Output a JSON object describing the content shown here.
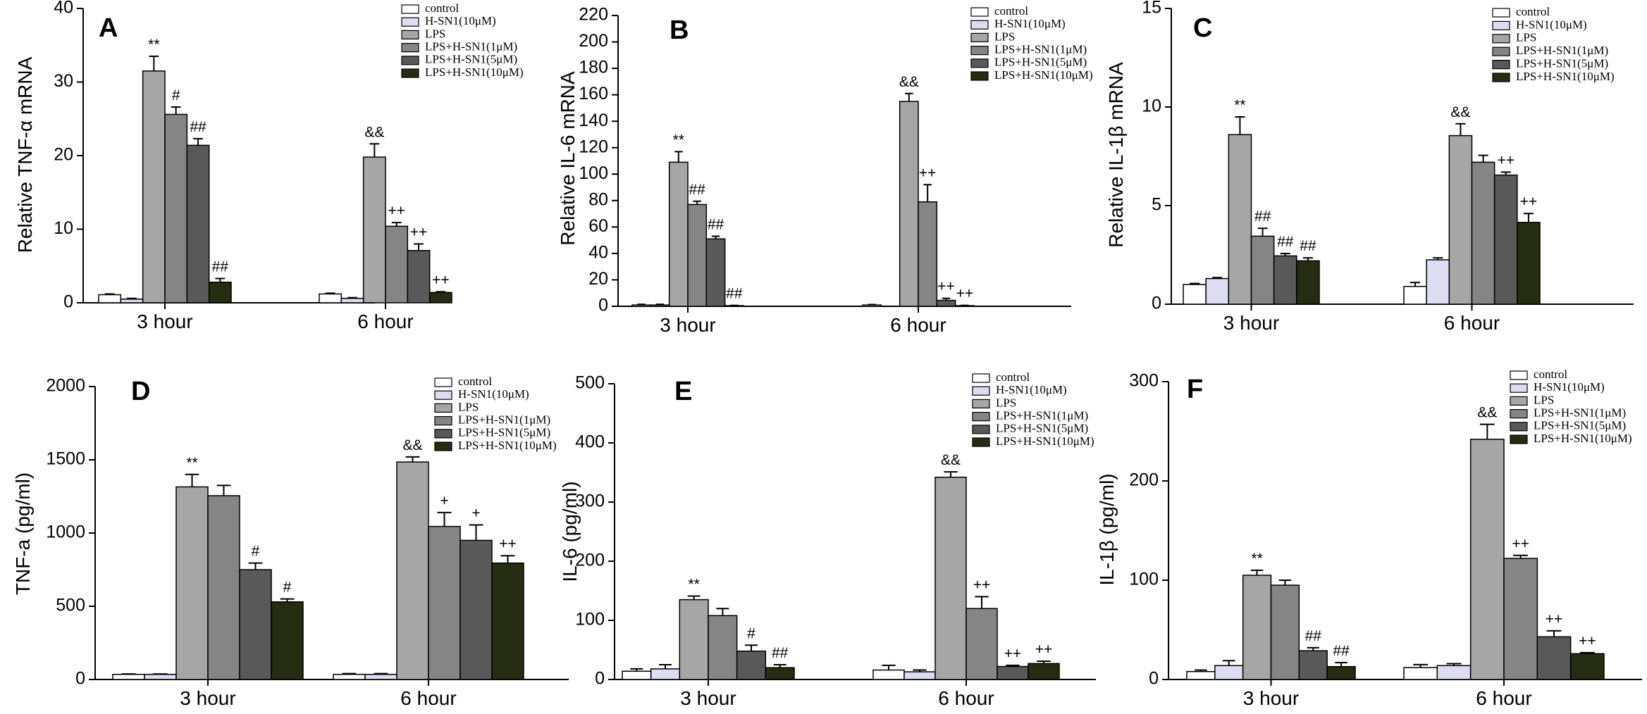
{
  "legend": {
    "entries": [
      "control",
      "H-SN1(10μM)",
      "LPS",
      "LPS+H-SN1(1μM)",
      "LPS+H-SN1(5μM)",
      "LPS+H-SN1(10μM)"
    ],
    "colors": [
      "#ffffff",
      "#dcdcf3",
      "#a6a6a6",
      "#858585",
      "#595959",
      "#262c12"
    ],
    "placement": "top-right"
  },
  "chart_data": [
    {
      "panel": "A",
      "type": "bar",
      "ylabel": "Relative TNF-α mRNA",
      "categories": [
        "3 hour",
        "6 hour"
      ],
      "ylim": [
        0,
        40
      ],
      "yticks": [
        0,
        10,
        20,
        30,
        40
      ],
      "ytick_labels": [
        "0",
        "10",
        "20",
        "30",
        "40"
      ],
      "series": [
        {
          "name": "control",
          "values": [
            1.1,
            1.2
          ],
          "errors": [
            0.1,
            0.1
          ],
          "annotations": [
            "",
            ""
          ]
        },
        {
          "name": "H-SN1(10μM)",
          "values": [
            0.5,
            0.6
          ],
          "errors": [
            0.1,
            0.1
          ],
          "annotations": [
            "",
            ""
          ]
        },
        {
          "name": "LPS",
          "values": [
            31.5,
            19.8
          ],
          "errors": [
            2.0,
            1.8
          ],
          "annotations": [
            "**",
            "&&"
          ]
        },
        {
          "name": "LPS+H-SN1(1μM)",
          "values": [
            25.6,
            10.4
          ],
          "errors": [
            1.0,
            0.5
          ],
          "annotations": [
            "#",
            "++"
          ]
        },
        {
          "name": "LPS+H-SN1(5μM)",
          "values": [
            21.4,
            7.1
          ],
          "errors": [
            0.9,
            0.9
          ],
          "annotations": [
            "##",
            "++"
          ]
        },
        {
          "name": "LPS+H-SN1(10μM)",
          "values": [
            2.8,
            1.4
          ],
          "errors": [
            0.5,
            0.1
          ],
          "annotations": [
            "##",
            "++"
          ]
        }
      ]
    },
    {
      "panel": "B",
      "type": "bar",
      "ylabel": "Relative IL-6 mRNA",
      "categories": [
        "3 hour",
        "6 hour"
      ],
      "ylim": [
        0,
        220
      ],
      "yticks": [
        0,
        20,
        40,
        60,
        80,
        100,
        120,
        140,
        160,
        180,
        200,
        220
      ],
      "ytick_labels": [
        "0",
        "20",
        "40",
        "60",
        "80",
        "100",
        "120",
        "140",
        "160",
        "180",
        "200",
        "220"
      ],
      "series": [
        {
          "name": "control",
          "values": [
            1.0,
            1.0
          ],
          "errors": [
            0.5,
            0.3
          ],
          "annotations": [
            "",
            ""
          ]
        },
        {
          "name": "H-SN1(10μM)",
          "values": [
            1.0,
            0.0
          ],
          "errors": [
            0.5,
            0.0
          ],
          "annotations": [
            "",
            ""
          ]
        },
        {
          "name": "LPS",
          "values": [
            109,
            155
          ],
          "errors": [
            8,
            6
          ],
          "annotations": [
            "**",
            "&&"
          ]
        },
        {
          "name": "LPS+H-SN1(1μM)",
          "values": [
            77,
            79
          ],
          "errors": [
            2.5,
            13
          ],
          "annotations": [
            "##",
            "++"
          ]
        },
        {
          "name": "LPS+H-SN1(5μM)",
          "values": [
            51,
            4.5
          ],
          "errors": [
            2,
            1.5
          ],
          "annotations": [
            "##",
            "++"
          ]
        },
        {
          "name": "LPS+H-SN1(10μM)",
          "values": [
            0.5,
            0.5
          ],
          "errors": [
            0.2,
            0.2
          ],
          "annotations": [
            "##",
            "++"
          ]
        }
      ]
    },
    {
      "panel": "C",
      "type": "bar",
      "ylabel": "Relative IL-1β mRNA",
      "categories": [
        "3 hour",
        "6 hour"
      ],
      "ylim": [
        0,
        15
      ],
      "yticks": [
        0,
        5,
        10,
        15
      ],
      "ytick_labels": [
        "0",
        "5",
        "10",
        "15"
      ],
      "series": [
        {
          "name": "control",
          "values": [
            1.0,
            0.9
          ],
          "errors": [
            0.05,
            0.2
          ],
          "annotations": [
            "",
            ""
          ]
        },
        {
          "name": "H-SN1(10μM)",
          "values": [
            1.3,
            2.25
          ],
          "errors": [
            0.05,
            0.1
          ],
          "annotations": [
            "",
            ""
          ]
        },
        {
          "name": "LPS",
          "values": [
            8.6,
            8.55
          ],
          "errors": [
            0.9,
            0.6
          ],
          "annotations": [
            "**",
            "&&"
          ]
        },
        {
          "name": "LPS+H-SN1(1μM)",
          "values": [
            3.45,
            7.2
          ],
          "errors": [
            0.4,
            0.35
          ],
          "annotations": [
            "##",
            ""
          ]
        },
        {
          "name": "LPS+H-SN1(5μM)",
          "values": [
            2.45,
            6.55
          ],
          "errors": [
            0.12,
            0.15
          ],
          "annotations": [
            "##",
            "++"
          ]
        },
        {
          "name": "LPS+H-SN1(10μM)",
          "values": [
            2.2,
            4.15
          ],
          "errors": [
            0.15,
            0.45
          ],
          "annotations": [
            "##",
            "++"
          ]
        }
      ]
    },
    {
      "panel": "D",
      "type": "bar",
      "ylabel": "TNF-a  (pg/ml)",
      "categories": [
        "3 hour",
        "6 hour"
      ],
      "ylim": [
        0,
        2000
      ],
      "yticks": [
        0,
        500,
        1000,
        1500,
        2000
      ],
      "ytick_labels": [
        "0",
        "500",
        "1000",
        "1500",
        "2000"
      ],
      "series": [
        {
          "name": "control",
          "values": [
            35,
            35
          ],
          "errors": [
            3,
            5
          ],
          "annotations": [
            "",
            ""
          ]
        },
        {
          "name": "H-SN1(10μM)",
          "values": [
            35,
            35
          ],
          "errors": [
            3,
            5
          ],
          "annotations": [
            "",
            ""
          ]
        },
        {
          "name": "LPS",
          "values": [
            1315,
            1485
          ],
          "errors": [
            85,
            35
          ],
          "annotations": [
            "**",
            "&&"
          ]
        },
        {
          "name": "LPS+H-SN1(1μM)",
          "values": [
            1255,
            1045
          ],
          "errors": [
            70,
            95
          ],
          "annotations": [
            "",
            "+"
          ]
        },
        {
          "name": "LPS+H-SN1(5μM)",
          "values": [
            750,
            950
          ],
          "errors": [
            45,
            105
          ],
          "annotations": [
            "#",
            "+"
          ]
        },
        {
          "name": "LPS+H-SN1(10μM)",
          "values": [
            530,
            795
          ],
          "errors": [
            20,
            50
          ],
          "annotations": [
            "#",
            "++"
          ]
        }
      ]
    },
    {
      "panel": "E",
      "type": "bar",
      "ylabel": "IL-6  (pg/ml)",
      "categories": [
        "3 hour",
        "6 hour"
      ],
      "ylim": [
        0,
        500
      ],
      "yticks": [
        0,
        100,
        200,
        300,
        400,
        500
      ],
      "ytick_labels": [
        "0",
        "100",
        "200",
        "300",
        "400",
        "500"
      ],
      "series": [
        {
          "name": "control",
          "values": [
            14,
            16
          ],
          "errors": [
            4,
            8
          ],
          "annotations": [
            "",
            ""
          ]
        },
        {
          "name": "H-SN1(10μM)",
          "values": [
            18,
            13
          ],
          "errors": [
            7,
            3
          ],
          "annotations": [
            "",
            ""
          ]
        },
        {
          "name": "LPS",
          "values": [
            135,
            342
          ],
          "errors": [
            6,
            9
          ],
          "annotations": [
            "**",
            "&&"
          ]
        },
        {
          "name": "LPS+H-SN1(1μM)",
          "values": [
            108,
            120
          ],
          "errors": [
            12,
            20
          ],
          "annotations": [
            "",
            "++"
          ]
        },
        {
          "name": "LPS+H-SN1(5μM)",
          "values": [
            48,
            22
          ],
          "errors": [
            10,
            2
          ],
          "annotations": [
            "#",
            "++"
          ]
        },
        {
          "name": "LPS+H-SN1(10μM)",
          "values": [
            20,
            27
          ],
          "errors": [
            5,
            4
          ],
          "annotations": [
            "##",
            "++"
          ]
        }
      ]
    },
    {
      "panel": "F",
      "type": "bar",
      "ylabel": "IL-1β  (pg/ml)",
      "categories": [
        "3 hour",
        "6 hour"
      ],
      "ylim": [
        0,
        300
      ],
      "yticks": [
        0,
        100,
        200,
        300
      ],
      "ytick_labels": [
        "0",
        "100",
        "200",
        "300"
      ],
      "series": [
        {
          "name": "control",
          "values": [
            8,
            12
          ],
          "errors": [
            1.5,
            3
          ],
          "annotations": [
            "",
            ""
          ]
        },
        {
          "name": "H-SN1(10μM)",
          "values": [
            14,
            14
          ],
          "errors": [
            5,
            2
          ],
          "annotations": [
            "",
            ""
          ]
        },
        {
          "name": "LPS",
          "values": [
            105,
            242
          ],
          "errors": [
            5,
            15
          ],
          "annotations": [
            "**",
            "&&"
          ]
        },
        {
          "name": "LPS+H-SN1(1μM)",
          "values": [
            95,
            122
          ],
          "errors": [
            5,
            3
          ],
          "annotations": [
            "",
            "++"
          ]
        },
        {
          "name": "LPS+H-SN1(5μM)",
          "values": [
            29,
            43
          ],
          "errors": [
            3,
            6
          ],
          "annotations": [
            "##",
            "++"
          ]
        },
        {
          "name": "LPS+H-SN1(10μM)",
          "values": [
            13,
            26
          ],
          "errors": [
            4,
            1
          ],
          "annotations": [
            "##",
            "++"
          ]
        }
      ]
    }
  ]
}
